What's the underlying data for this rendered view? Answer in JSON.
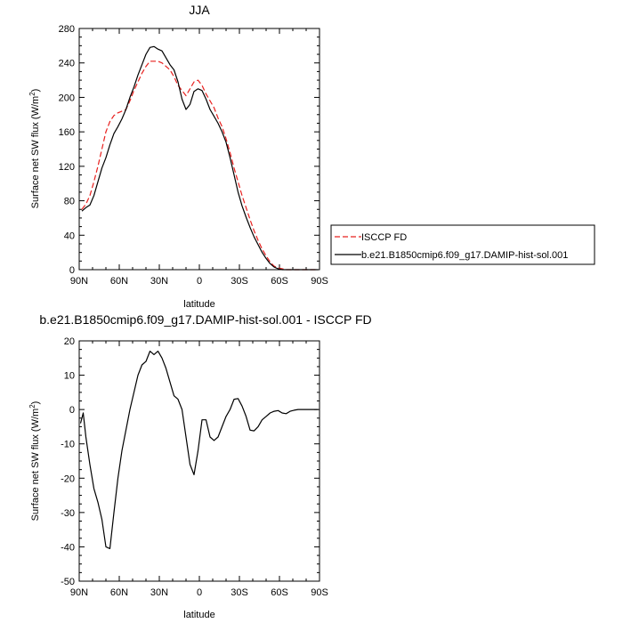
{
  "chart_data": [
    {
      "type": "line",
      "title": "JJA",
      "xlabel": "latitude",
      "ylabel": "Surface net SW flux (W/m",
      "ylabel_sup": "2",
      "ylabel_end": ")",
      "xlim": [
        90,
        -90
      ],
      "ylim": [
        0,
        280
      ],
      "xticks": [
        90,
        60,
        30,
        0,
        -30,
        -60,
        -90
      ],
      "xtick_labels": [
        "90N",
        "60N",
        "30N",
        "0",
        "30S",
        "60S",
        "90S"
      ],
      "yticks": [
        0,
        40,
        80,
        120,
        160,
        200,
        240,
        280
      ],
      "ytick_labels": [
        "0",
        "40",
        "80",
        "120",
        "160",
        "200",
        "240",
        "280"
      ],
      "series": [
        {
          "name": "ISCCP FD",
          "color": "#e8201e",
          "dash": true,
          "x": [
            88,
            85,
            82,
            79,
            76,
            73,
            70,
            67,
            64,
            61,
            58,
            55,
            52,
            49,
            46,
            43,
            40,
            37,
            34,
            31,
            28,
            25,
            22,
            19,
            16,
            13,
            10,
            7,
            4,
            1,
            -2,
            -5,
            -8,
            -11,
            -14,
            -17,
            -20,
            -23,
            -26,
            -29,
            -32,
            -35,
            -38,
            -41,
            -44,
            -47,
            -50,
            -53,
            -56,
            -59,
            -62,
            -65,
            -68,
            -71,
            -74,
            -77,
            -80,
            -83,
            -86,
            -89
          ],
          "y": [
            70,
            76,
            86,
            102,
            120,
            140,
            160,
            172,
            179,
            182,
            184,
            186,
            196,
            208,
            218,
            228,
            236,
            242,
            242,
            242,
            240,
            236,
            232,
            224,
            214,
            208,
            202,
            210,
            218,
            220,
            214,
            204,
            196,
            188,
            176,
            166,
            152,
            136,
            118,
            102,
            86,
            72,
            58,
            45,
            34,
            24,
            16,
            9,
            4,
            2,
            1,
            0,
            0,
            0,
            0,
            0,
            0,
            0,
            0,
            0
          ]
        },
        {
          "name": "b.e21.B1850cmip6.f09_g17.DAMIP-hist-sol.001",
          "color": "#000000",
          "dash": false,
          "x": [
            88,
            85,
            82,
            79,
            76,
            73,
            70,
            67,
            64,
            61,
            58,
            55,
            52,
            49,
            46,
            43,
            40,
            37,
            34,
            31,
            28,
            25,
            22,
            19,
            16,
            13,
            10,
            7,
            4,
            1,
            -2,
            -5,
            -8,
            -11,
            -14,
            -17,
            -20,
            -23,
            -26,
            -29,
            -32,
            -35,
            -38,
            -41,
            -44,
            -47,
            -50,
            -53,
            -56,
            -59,
            -62,
            -65,
            -68,
            -71,
            -74,
            -77,
            -80,
            -83,
            -86,
            -89
          ],
          "y": [
            68,
            72,
            75,
            86,
            102,
            118,
            130,
            145,
            158,
            166,
            175,
            186,
            200,
            212,
            226,
            238,
            250,
            258,
            259,
            256,
            254,
            246,
            238,
            232,
            218,
            198,
            186,
            192,
            207,
            210,
            208,
            198,
            186,
            178,
            170,
            160,
            148,
            130,
            110,
            90,
            74,
            61,
            49,
            38,
            29,
            20,
            13,
            7,
            3,
            1,
            0,
            0,
            0,
            0,
            0,
            0,
            0,
            0,
            0,
            0
          ]
        }
      ],
      "legend": [
        {
          "label": "ISCCP FD"
        },
        {
          "label": "b.e21.B1850cmip6.f09_g17.DAMIP-hist-sol.001"
        }
      ]
    },
    {
      "type": "line",
      "title": "b.e21.B1850cmip6.f09_g17.DAMIP-hist-sol.001 - ISCCP FD",
      "xlabel": "latitude",
      "ylabel": "Surface net SW flux (W/m",
      "ylabel_sup": "2",
      "ylabel_end": ")",
      "xlim": [
        90,
        -90
      ],
      "ylim": [
        -50,
        20
      ],
      "xticks": [
        90,
        60,
        30,
        0,
        -30,
        -60,
        -90
      ],
      "xtick_labels": [
        "90N",
        "60N",
        "30N",
        "0",
        "30S",
        "60S",
        "90S"
      ],
      "yticks": [
        -50,
        -40,
        -30,
        -20,
        -10,
        0,
        10,
        20
      ],
      "ytick_labels": [
        "-50",
        "-40",
        "-30",
        "-20",
        "-10",
        "0",
        "10",
        "20"
      ],
      "series": [
        {
          "name": "b.e21.B1850cmip6.f09_g17.DAMIP-hist-sol.001 - ISCCP FD",
          "color": "#000000",
          "dash": false,
          "x": [
            89,
            87,
            85,
            82,
            79,
            76,
            73,
            70,
            67,
            64,
            61,
            58,
            55,
            52,
            49,
            46,
            43,
            40,
            37,
            34,
            31,
            28,
            25,
            22,
            19,
            16,
            13,
            10,
            7,
            4,
            1,
            -2,
            -5,
            -8,
            -11,
            -14,
            -17,
            -20,
            -23,
            -26,
            -29,
            -32,
            -35,
            -38,
            -41,
            -44,
            -47,
            -50,
            -53,
            -56,
            -59,
            -62,
            -65,
            -68,
            -71,
            -74,
            -77,
            -80,
            -83,
            -86,
            -89
          ],
          "y": [
            -4,
            -1,
            -8,
            -16,
            -23,
            -27,
            -32,
            -40,
            -40.5,
            -30,
            -20,
            -12,
            -6,
            0,
            5,
            10,
            13,
            14,
            17,
            16,
            17,
            15,
            12,
            8,
            4,
            3,
            0,
            -8,
            -16,
            -19,
            -12,
            -3,
            -3,
            -8,
            -9,
            -8,
            -5,
            -2,
            0,
            3,
            3.2,
            1,
            -2,
            -6,
            -6.2,
            -5,
            -3,
            -2,
            -1,
            -0.5,
            -0.3,
            -1,
            -1.2,
            -0.5,
            -0.2,
            0,
            0,
            0,
            0,
            0,
            0
          ]
        }
      ]
    }
  ]
}
